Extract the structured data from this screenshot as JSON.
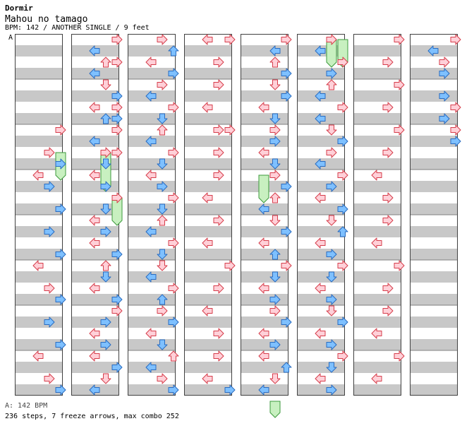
{
  "song": {
    "artist": "Dormir",
    "title": "Mahou no tamago",
    "info": "BPM: 142 / ANOTHER SINGLE / 9 feet"
  },
  "chart": {
    "marker": "A",
    "footer_bpm": "A: 142 BPM",
    "footer_stats": "236 steps, 7 freeze arrows, max combo 252",
    "columns": 8,
    "measures_per_column": 8,
    "colors": {
      "stripe": "#c8c8c8",
      "border": "#404040",
      "red_fill": "#ffd0d8",
      "red_stroke": "#d63c4a",
      "blue_fill": "#7ec0ff",
      "blue_stroke": "#2a6cc0",
      "freeze_fill": "#c8f0c0",
      "freeze_stroke": "#3c9a3c"
    },
    "steps": [
      [
        0,
        8,
        2,
        "r"
      ],
      [
        0,
        10,
        1,
        "r"
      ],
      [
        0,
        11,
        2,
        "r"
      ],
      [
        0,
        12,
        0,
        "l"
      ],
      [
        0,
        13,
        1,
        "r"
      ],
      [
        0,
        15,
        2,
        "r"
      ],
      [
        0,
        17,
        1,
        "r"
      ],
      [
        0,
        19,
        2,
        "r"
      ],
      [
        0,
        20,
        0,
        "l"
      ],
      [
        0,
        22,
        1,
        "r"
      ],
      [
        0,
        23,
        2,
        "r"
      ],
      [
        0,
        25,
        1,
        "r"
      ],
      [
        0,
        27,
        2,
        "r"
      ],
      [
        0,
        28,
        0,
        "l"
      ],
      [
        0,
        30,
        1,
        "r"
      ],
      [
        0,
        31,
        2,
        "r"
      ],
      [
        1,
        0,
        2,
        "r"
      ],
      [
        1,
        1,
        0,
        "l"
      ],
      [
        1,
        2,
        2,
        "r"
      ],
      [
        1,
        2,
        1,
        "u"
      ],
      [
        1,
        3,
        0,
        "l"
      ],
      [
        1,
        4,
        1,
        "d"
      ],
      [
        1,
        5,
        2,
        "r"
      ],
      [
        1,
        6,
        0,
        "l"
      ],
      [
        1,
        6,
        2,
        "r"
      ],
      [
        1,
        7,
        1,
        "u"
      ],
      [
        1,
        7,
        2,
        "r"
      ],
      [
        1,
        8,
        2,
        "r"
      ],
      [
        1,
        9,
        0,
        "l"
      ],
      [
        1,
        10,
        1,
        "r"
      ],
      [
        1,
        10,
        2,
        "r"
      ],
      [
        1,
        11,
        1,
        "d"
      ],
      [
        1,
        12,
        0,
        "l"
      ],
      [
        1,
        13,
        1,
        "r"
      ],
      [
        1,
        14,
        2,
        "r"
      ],
      [
        1,
        15,
        1,
        "d"
      ],
      [
        1,
        16,
        0,
        "l"
      ],
      [
        1,
        17,
        1,
        "r"
      ],
      [
        1,
        18,
        0,
        "l"
      ],
      [
        1,
        19,
        2,
        "r"
      ],
      [
        1,
        20,
        1,
        "u"
      ],
      [
        1,
        21,
        1,
        "d"
      ],
      [
        1,
        22,
        0,
        "l"
      ],
      [
        1,
        23,
        2,
        "r"
      ],
      [
        1,
        24,
        2,
        "r"
      ],
      [
        1,
        25,
        1,
        "r"
      ],
      [
        1,
        26,
        0,
        "l"
      ],
      [
        1,
        27,
        1,
        "r"
      ],
      [
        1,
        28,
        0,
        "l"
      ],
      [
        1,
        29,
        2,
        "r"
      ],
      [
        1,
        30,
        1,
        "d"
      ],
      [
        1,
        31,
        0,
        "l"
      ],
      [
        2,
        0,
        1,
        "r"
      ],
      [
        2,
        1,
        2,
        "u"
      ],
      [
        2,
        2,
        0,
        "l"
      ],
      [
        2,
        3,
        2,
        "r"
      ],
      [
        2,
        4,
        1,
        "r"
      ],
      [
        2,
        5,
        0,
        "l"
      ],
      [
        2,
        6,
        2,
        "r"
      ],
      [
        2,
        7,
        1,
        "d"
      ],
      [
        2,
        8,
        1,
        "u"
      ],
      [
        2,
        9,
        0,
        "l"
      ],
      [
        2,
        10,
        2,
        "r"
      ],
      [
        2,
        11,
        1,
        "d"
      ],
      [
        2,
        12,
        0,
        "l"
      ],
      [
        2,
        13,
        1,
        "r"
      ],
      [
        2,
        14,
        2,
        "r"
      ],
      [
        2,
        15,
        1,
        "d"
      ],
      [
        2,
        16,
        1,
        "u"
      ],
      [
        2,
        17,
        0,
        "l"
      ],
      [
        2,
        18,
        2,
        "r"
      ],
      [
        2,
        19,
        1,
        "d"
      ],
      [
        2,
        20,
        1,
        "d"
      ],
      [
        2,
        21,
        0,
        "l"
      ],
      [
        2,
        22,
        2,
        "r"
      ],
      [
        2,
        23,
        1,
        "u"
      ],
      [
        2,
        24,
        1,
        "r"
      ],
      [
        2,
        25,
        2,
        "r"
      ],
      [
        2,
        26,
        0,
        "l"
      ],
      [
        2,
        27,
        1,
        "d"
      ],
      [
        2,
        28,
        2,
        "u"
      ],
      [
        2,
        29,
        0,
        "l"
      ],
      [
        2,
        30,
        1,
        "r"
      ],
      [
        2,
        31,
        2,
        "r"
      ],
      [
        3,
        0,
        0,
        "l"
      ],
      [
        3,
        0,
        2,
        "r"
      ],
      [
        3,
        2,
        1,
        "r"
      ],
      [
        3,
        4,
        1,
        "r"
      ],
      [
        3,
        6,
        0,
        "l"
      ],
      [
        3,
        8,
        1,
        "r"
      ],
      [
        3,
        8,
        2,
        "r"
      ],
      [
        3,
        10,
        1,
        "r"
      ],
      [
        3,
        12,
        1,
        "r"
      ],
      [
        3,
        14,
        0,
        "l"
      ],
      [
        3,
        16,
        1,
        "r"
      ],
      [
        3,
        18,
        0,
        "l"
      ],
      [
        3,
        20,
        2,
        "r"
      ],
      [
        3,
        22,
        1,
        "r"
      ],
      [
        3,
        24,
        0,
        "l"
      ],
      [
        3,
        26,
        1,
        "r"
      ],
      [
        3,
        28,
        1,
        "r"
      ],
      [
        3,
        30,
        0,
        "l"
      ],
      [
        3,
        31,
        2,
        "r"
      ],
      [
        4,
        0,
        2,
        "r"
      ],
      [
        4,
        1,
        1,
        "l"
      ],
      [
        4,
        2,
        1,
        "u"
      ],
      [
        4,
        3,
        2,
        "r"
      ],
      [
        4,
        4,
        1,
        "d"
      ],
      [
        4,
        5,
        2,
        "r"
      ],
      [
        4,
        6,
        0,
        "l"
      ],
      [
        4,
        7,
        1,
        "d"
      ],
      [
        4,
        8,
        1,
        "r"
      ],
      [
        4,
        9,
        1,
        "r"
      ],
      [
        4,
        10,
        0,
        "l"
      ],
      [
        4,
        11,
        1,
        "d"
      ],
      [
        4,
        12,
        1,
        "r"
      ],
      [
        4,
        13,
        2,
        "r"
      ],
      [
        4,
        14,
        1,
        "u"
      ],
      [
        4,
        15,
        0,
        "l"
      ],
      [
        4,
        16,
        1,
        "d"
      ],
      [
        4,
        17,
        2,
        "r"
      ],
      [
        4,
        18,
        0,
        "l"
      ],
      [
        4,
        19,
        1,
        "u"
      ],
      [
        4,
        20,
        2,
        "r"
      ],
      [
        4,
        21,
        1,
        "d"
      ],
      [
        4,
        22,
        0,
        "l"
      ],
      [
        4,
        23,
        1,
        "r"
      ],
      [
        4,
        24,
        1,
        "r"
      ],
      [
        4,
        25,
        2,
        "r"
      ],
      [
        4,
        26,
        0,
        "l"
      ],
      [
        4,
        27,
        1,
        "r"
      ],
      [
        4,
        28,
        0,
        "l"
      ],
      [
        4,
        29,
        2,
        "u"
      ],
      [
        4,
        30,
        1,
        "d"
      ],
      [
        4,
        31,
        0,
        "l"
      ],
      [
        5,
        0,
        1,
        "r"
      ],
      [
        5,
        1,
        0,
        "l"
      ],
      [
        5,
        2,
        2,
        "r"
      ],
      [
        5,
        3,
        1,
        "r"
      ],
      [
        5,
        4,
        1,
        "u"
      ],
      [
        5,
        5,
        0,
        "l"
      ],
      [
        5,
        6,
        2,
        "r"
      ],
      [
        5,
        7,
        0,
        "l"
      ],
      [
        5,
        8,
        1,
        "d"
      ],
      [
        5,
        9,
        2,
        "r"
      ],
      [
        5,
        10,
        1,
        "r"
      ],
      [
        5,
        11,
        0,
        "l"
      ],
      [
        5,
        12,
        2,
        "r"
      ],
      [
        5,
        13,
        1,
        "r"
      ],
      [
        5,
        14,
        0,
        "l"
      ],
      [
        5,
        15,
        2,
        "r"
      ],
      [
        5,
        16,
        1,
        "d"
      ],
      [
        5,
        17,
        2,
        "u"
      ],
      [
        5,
        18,
        0,
        "l"
      ],
      [
        5,
        19,
        1,
        "r"
      ],
      [
        5,
        20,
        2,
        "r"
      ],
      [
        5,
        21,
        1,
        "d"
      ],
      [
        5,
        22,
        0,
        "l"
      ],
      [
        5,
        23,
        1,
        "r"
      ],
      [
        5,
        24,
        1,
        "d"
      ],
      [
        5,
        25,
        2,
        "r"
      ],
      [
        5,
        26,
        0,
        "l"
      ],
      [
        5,
        27,
        1,
        "r"
      ],
      [
        5,
        28,
        2,
        "r"
      ],
      [
        5,
        29,
        1,
        "d"
      ],
      [
        5,
        30,
        0,
        "l"
      ],
      [
        5,
        31,
        1,
        "r"
      ],
      [
        6,
        0,
        2,
        "r"
      ],
      [
        6,
        2,
        1,
        "r"
      ],
      [
        6,
        4,
        2,
        "r"
      ],
      [
        6,
        6,
        1,
        "r"
      ],
      [
        6,
        8,
        2,
        "r"
      ],
      [
        6,
        10,
        1,
        "r"
      ],
      [
        6,
        12,
        0,
        "l"
      ],
      [
        6,
        14,
        1,
        "r"
      ],
      [
        6,
        16,
        1,
        "r"
      ],
      [
        6,
        18,
        0,
        "l"
      ],
      [
        6,
        20,
        2,
        "r"
      ],
      [
        6,
        22,
        1,
        "r"
      ],
      [
        6,
        24,
        1,
        "r"
      ],
      [
        6,
        26,
        0,
        "l"
      ],
      [
        6,
        28,
        2,
        "r"
      ],
      [
        6,
        30,
        0,
        "l"
      ],
      [
        7,
        0,
        2,
        "r"
      ],
      [
        7,
        1,
        0,
        "l"
      ],
      [
        7,
        2,
        1,
        "r"
      ],
      [
        7,
        3,
        1,
        "r"
      ],
      [
        7,
        5,
        1,
        "r"
      ],
      [
        7,
        6,
        2,
        "r"
      ],
      [
        7,
        7,
        1,
        "r"
      ],
      [
        7,
        8,
        2,
        "r"
      ],
      [
        7,
        9,
        2,
        "r"
      ]
    ],
    "freezes": [
      [
        0,
        10,
        12,
        2
      ],
      [
        1,
        10,
        13,
        1
      ],
      [
        1,
        14,
        16,
        2
      ],
      [
        4,
        12,
        14,
        0
      ],
      [
        4,
        32,
        33,
        1
      ],
      [
        5,
        0,
        2,
        1
      ],
      [
        5,
        0,
        2,
        2
      ]
    ]
  }
}
